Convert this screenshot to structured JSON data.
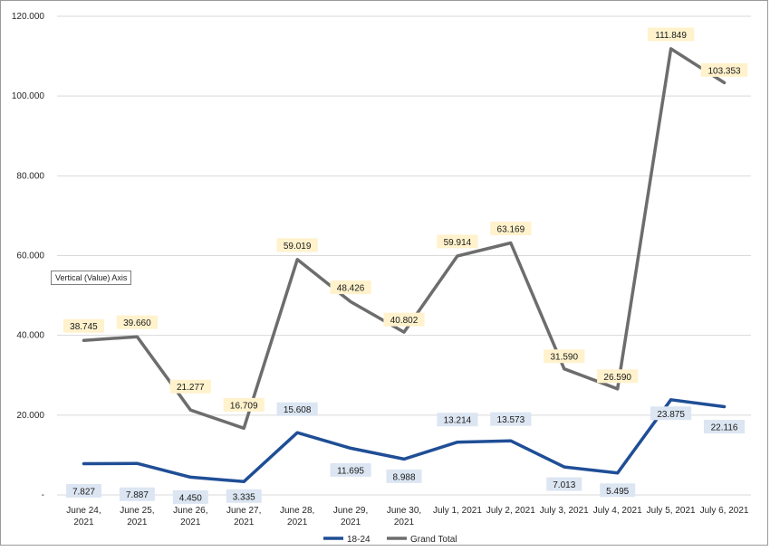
{
  "chart_data": {
    "type": "line",
    "categories": [
      [
        "June 24,",
        "2021"
      ],
      [
        "June 25,",
        "2021"
      ],
      [
        "June 26,",
        "2021"
      ],
      [
        "June 27,",
        "2021"
      ],
      [
        "June 28,",
        "2021"
      ],
      [
        "June 29,",
        "2021"
      ],
      [
        "June 30,",
        "2021"
      ],
      [
        "July 1, 2021"
      ],
      [
        "July 2, 2021"
      ],
      [
        "July 3, 2021"
      ],
      [
        "July 4, 2021"
      ],
      [
        "July 5, 2021"
      ],
      [
        "July 6, 2021"
      ]
    ],
    "series": [
      {
        "name": "18-24",
        "color": "#1f4e96",
        "label_bg": "#dce6f2",
        "values": [
          7.827,
          7.887,
          4.45,
          3.335,
          15.608,
          11.695,
          8.988,
          13.214,
          13.573,
          7.013,
          5.495,
          23.875,
          22.116
        ],
        "labels": [
          "7.827",
          "7.887",
          "4.450",
          "3.335",
          "15.608",
          "11.695",
          "8.988",
          "13.214",
          "13.573",
          "7.013",
          "5.495",
          "23.875",
          "22.116"
        ]
      },
      {
        "name": "Grand Total",
        "color": "#6d6d6d",
        "label_bg": "#fff2cc",
        "values": [
          38.745,
          39.66,
          21.277,
          16.709,
          59.019,
          48.426,
          40.802,
          59.914,
          63.169,
          31.59,
          26.59,
          111.849,
          103.353
        ],
        "labels": [
          "38.745",
          "39.660",
          "21.277",
          "16.709",
          "59.019",
          "48.426",
          "40.802",
          "59.914",
          "63.169",
          "31.590",
          "26.590",
          "111.849",
          "103.353"
        ]
      }
    ],
    "y_ticks": [
      "-",
      "20.000",
      "40.000",
      "60.000",
      "80.000",
      "100.000",
      "120.000"
    ],
    "ylim": [
      0,
      120
    ],
    "grid": true,
    "legend_position": "bottom",
    "tooltip": "Vertical (Value) Axis"
  }
}
